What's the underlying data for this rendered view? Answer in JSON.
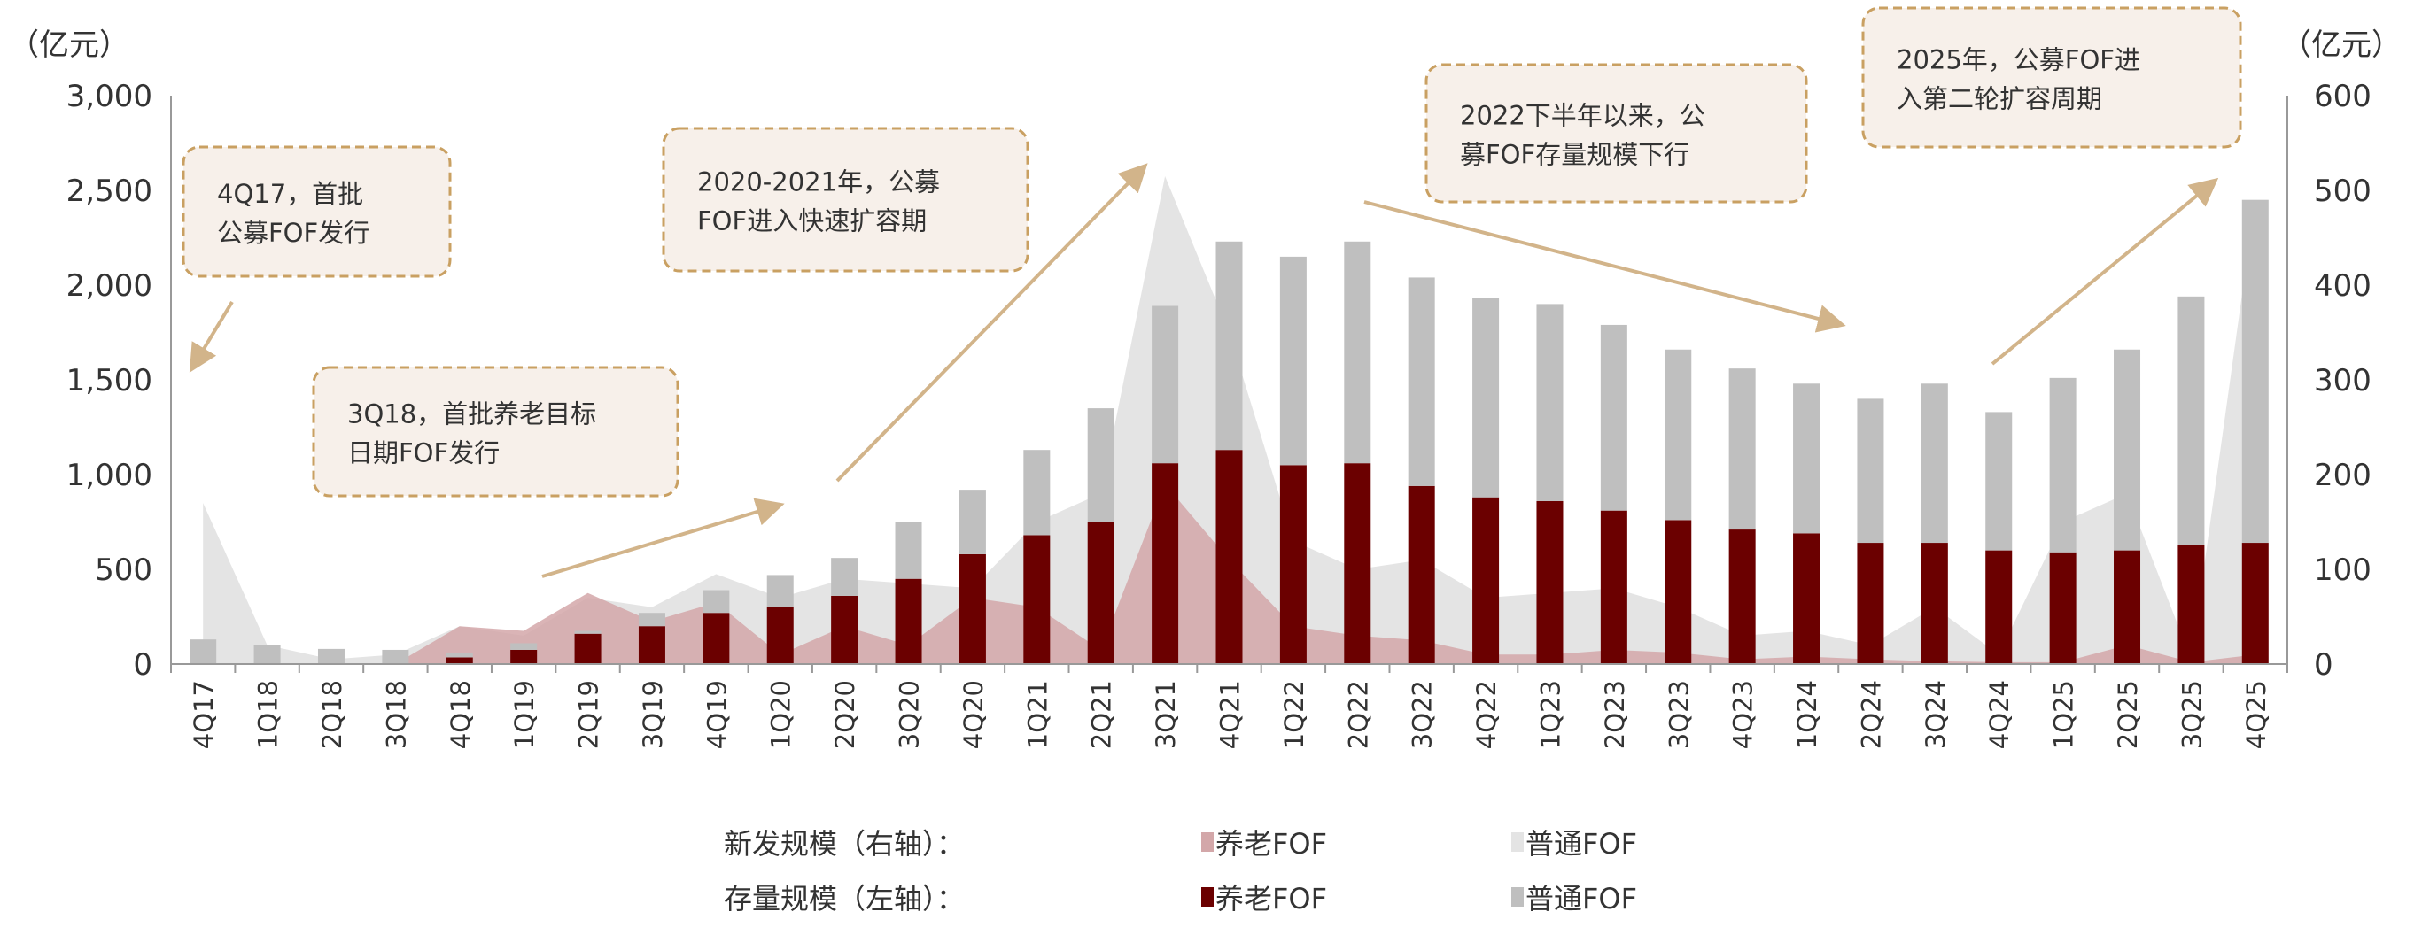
{
  "chart_data": {
    "type": "bar",
    "title": "",
    "left_axis": {
      "unit_label": "（亿元）",
      "ylim": [
        0,
        3000
      ],
      "ticks": [
        "0",
        "500",
        "1,000",
        "1,500",
        "2,000",
        "2,500",
        "3,000"
      ],
      "tick_values": [
        0,
        500,
        1000,
        1500,
        2000,
        2500,
        3000
      ]
    },
    "right_axis": {
      "unit_label": "（亿元）",
      "ylim": [
        0,
        600
      ],
      "ticks": [
        "0",
        "100",
        "200",
        "300",
        "400",
        "500",
        "600"
      ],
      "tick_values": [
        0,
        100,
        200,
        300,
        400,
        500,
        600
      ]
    },
    "categories": [
      "4Q17",
      "1Q18",
      "2Q18",
      "3Q18",
      "4Q18",
      "1Q19",
      "2Q19",
      "3Q19",
      "4Q19",
      "1Q20",
      "2Q20",
      "3Q20",
      "4Q20",
      "1Q21",
      "2Q21",
      "3Q21",
      "4Q21",
      "1Q22",
      "2Q22",
      "3Q22",
      "4Q22",
      "1Q23",
      "2Q23",
      "3Q23",
      "4Q23",
      "1Q24",
      "2Q24",
      "3Q24",
      "4Q24",
      "1Q25",
      "2Q25",
      "3Q25",
      "4Q25"
    ],
    "series": [
      {
        "name": "新发规模-普通FOF",
        "axis": "right",
        "kind": "area",
        "color": "#e4e4e4",
        "values": [
          170,
          20,
          5,
          10,
          40,
          30,
          70,
          60,
          95,
          70,
          90,
          85,
          80,
          150,
          180,
          515,
          350,
          130,
          100,
          110,
          70,
          75,
          80,
          60,
          30,
          35,
          20,
          60,
          10,
          150,
          180,
          5,
          490
        ]
      },
      {
        "name": "新发规模-养老FOF",
        "axis": "right",
        "kind": "area",
        "color": "#d3a7a9",
        "values": [
          0,
          0,
          0,
          0,
          40,
          35,
          75,
          45,
          65,
          10,
          40,
          20,
          70,
          60,
          15,
          190,
          110,
          40,
          30,
          25,
          10,
          10,
          15,
          12,
          5,
          8,
          5,
          3,
          2,
          2,
          20,
          2,
          10
        ]
      },
      {
        "name": "存量规模-普通FOF",
        "axis": "left",
        "kind": "stacked-bar",
        "color": "#bfbfbf",
        "values": [
          130,
          100,
          80,
          75,
          25,
          35,
          15,
          70,
          120,
          170,
          200,
          300,
          340,
          450,
          600,
          830,
          1100,
          1100,
          1170,
          1100,
          1050,
          1040,
          980,
          900,
          850,
          790,
          760,
          840,
          730,
          920,
          1060,
          1310,
          1810
        ]
      },
      {
        "name": "存量规模-养老FOF",
        "axis": "left",
        "kind": "stacked-bar",
        "color": "#6b0000",
        "values": [
          0,
          0,
          0,
          0,
          35,
          75,
          160,
          200,
          270,
          300,
          360,
          450,
          580,
          680,
          750,
          1060,
          1130,
          1050,
          1060,
          940,
          880,
          860,
          810,
          760,
          710,
          690,
          640,
          640,
          600,
          590,
          600,
          630,
          640
        ]
      }
    ],
    "legend": {
      "placement": "bottom",
      "rows": [
        {
          "label": "新发规模（右轴）：",
          "items": [
            "养老FOF",
            "普通FOF"
          ]
        },
        {
          "label": "存量规模（左轴）：",
          "items": [
            "养老FOF",
            "普通FOF"
          ]
        }
      ]
    },
    "annotations": [
      {
        "lines": [
          "4Q17，首批",
          "公募FOF发行"
        ]
      },
      {
        "lines": [
          "3Q18，首批养老目标",
          "日期FOF发行"
        ]
      },
      {
        "lines": [
          "2020-2021年，公募",
          "FOF进入快速扩容期"
        ]
      },
      {
        "lines": [
          "2022下半年以来，公",
          "募FOF存量规模下行"
        ]
      },
      {
        "lines": [
          "2025年，公募FOF进",
          "入第二轮扩容周期"
        ]
      }
    ],
    "colors": {
      "annotation_border": "#c9a062",
      "annotation_fill": "#f7f0ea",
      "arrow": "#d2b48a",
      "axis": "#888888"
    }
  }
}
